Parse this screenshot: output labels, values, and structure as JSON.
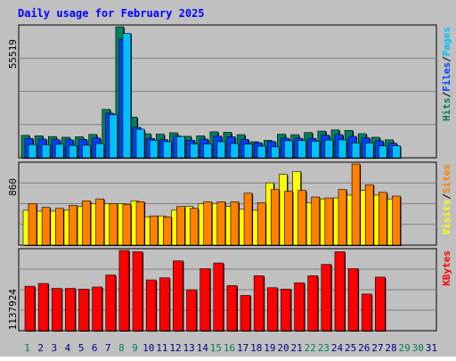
{
  "title": "Daily usage for February 2025",
  "colors": {
    "background": "#c0c0c0",
    "title_text": "#0000ff",
    "hits": "#00805c",
    "files": "#0040ff",
    "pages": "#00c0ff",
    "visits": "#ffff00",
    "sites": "#ff8000",
    "kbytes": "#ff0000",
    "weekend_day": "#00805c",
    "weekday": "#000080"
  },
  "chart_data": [
    {
      "type": "bar",
      "name": "hits-files-pages",
      "x": [
        1,
        2,
        3,
        4,
        5,
        6,
        7,
        8,
        9,
        10,
        11,
        12,
        13,
        14,
        15,
        16,
        17,
        18,
        19,
        20,
        21,
        22,
        23,
        24,
        25,
        26,
        27,
        28
      ],
      "ylim": [
        0,
        55519
      ],
      "ylabel_max": "55519",
      "legend": [
        {
          "label": "Hits",
          "color": "#00805c"
        },
        {
          "label": "/",
          "color": "#000000"
        },
        {
          "label": "Files",
          "color": "#0040ff"
        },
        {
          "label": "/",
          "color": "#000000"
        },
        {
          "label": "Pages",
          "color": "#00c0ff"
        }
      ],
      "series": [
        {
          "name": "Hits",
          "color": "#00805c",
          "values": [
            9500,
            9300,
            9000,
            8700,
            8900,
            9900,
            20500,
            55519,
            17200,
            10200,
            10000,
            10600,
            9100,
            9300,
            11000,
            10800,
            9800,
            6800,
            7400,
            10000,
            9800,
            10700,
            11300,
            11800,
            11600,
            10200,
            8700,
            7600
          ]
        },
        {
          "name": "Files",
          "color": "#0040ff",
          "values": [
            8200,
            7900,
            7700,
            7600,
            7800,
            8400,
            18900,
            50400,
            12900,
            8200,
            7700,
            9200,
            7400,
            7900,
            9200,
            8900,
            7800,
            6400,
            6900,
            8300,
            8300,
            8200,
            9600,
            9800,
            9100,
            8500,
            7200,
            6200
          ]
        },
        {
          "name": "Pages",
          "color": "#00c0ff",
          "values": [
            5600,
            5500,
            5700,
            5200,
            5300,
            6000,
            18200,
            52700,
            12100,
            7400,
            6800,
            9000,
            5900,
            5800,
            6800,
            6000,
            5800,
            4900,
            4600,
            7200,
            7300,
            7000,
            7500,
            7600,
            6300,
            6300,
            5000,
            5100
          ]
        }
      ]
    },
    {
      "type": "bar",
      "name": "visits-sites",
      "x": [
        1,
        2,
        3,
        4,
        5,
        6,
        7,
        8,
        9,
        10,
        11,
        12,
        13,
        14,
        15,
        16,
        17,
        18,
        19,
        20,
        21,
        22,
        23,
        24,
        25,
        26,
        27,
        28
      ],
      "ylim": [
        0,
        860
      ],
      "ylabel_max": "860",
      "legend": [
        {
          "label": "Visits",
          "color": "#ffff00"
        },
        {
          "label": "/",
          "color": "#000000"
        },
        {
          "label": "Sites",
          "color": "#ff8000"
        }
      ],
      "series": [
        {
          "name": "Visits",
          "color": "#ffff00",
          "values": [
            370,
            360,
            360,
            370,
            410,
            440,
            440,
            440,
            470,
            300,
            310,
            370,
            410,
            440,
            440,
            410,
            380,
            370,
            660,
            750,
            780,
            450,
            490,
            500,
            530,
            580,
            530,
            490
          ]
        },
        {
          "name": "Sites",
          "color": "#ff8000",
          "values": [
            440,
            400,
            390,
            420,
            470,
            490,
            440,
            430,
            460,
            310,
            300,
            410,
            390,
            460,
            460,
            460,
            550,
            450,
            590,
            570,
            580,
            510,
            500,
            590,
            860,
            640,
            560,
            520
          ]
        }
      ]
    },
    {
      "type": "bar",
      "name": "kbytes",
      "x": [
        1,
        2,
        3,
        4,
        5,
        6,
        7,
        8,
        9,
        10,
        11,
        12,
        13,
        14,
        15,
        16,
        17,
        18,
        19,
        20,
        21,
        22,
        23,
        24,
        25,
        26,
        27,
        28
      ],
      "ylim": [
        0,
        1137924
      ],
      "ylabel_max": "1137924",
      "legend": [
        {
          "label": "KBytes",
          "color": "#ff0000"
        }
      ],
      "series": [
        {
          "name": "KBytes",
          "color": "#ff0000",
          "values": [
            630000,
            670000,
            600000,
            600000,
            590000,
            620000,
            790000,
            1137924,
            1120000,
            720000,
            750000,
            990000,
            580000,
            880000,
            960000,
            640000,
            500000,
            780000,
            610000,
            590000,
            680000,
            780000,
            940000,
            1120000,
            880000,
            520000,
            760000,
            0
          ]
        }
      ]
    }
  ],
  "day_labels": [
    "1",
    "2",
    "3",
    "4",
    "5",
    "6",
    "7",
    "8",
    "9",
    "10",
    "11",
    "12",
    "13",
    "14",
    "15",
    "16",
    "17",
    "18",
    "19",
    "20",
    "21",
    "22",
    "23",
    "24",
    "25",
    "26",
    "27",
    "28",
    "29",
    "30",
    "31"
  ],
  "weekend_days": [
    1,
    8,
    9,
    15,
    16,
    22,
    23,
    29,
    30
  ]
}
